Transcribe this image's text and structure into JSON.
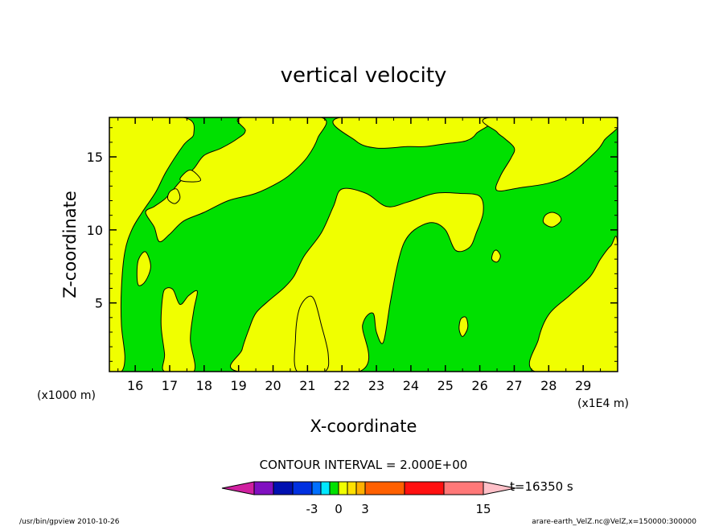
{
  "chart_data": {
    "type": "heatmap",
    "title": "vertical velocity",
    "xlabel": "X-coordinate",
    "ylabel": "Z-coordinate",
    "x_unit_left": "(x1000 m)",
    "x_unit_right": "(x1E4 m)",
    "xlim": [
      15.25,
      30.0
    ],
    "ylim": [
      0.3,
      17.7
    ],
    "x_ticks": [
      16,
      17,
      18,
      19,
      20,
      21,
      22,
      23,
      24,
      25,
      26,
      27,
      28,
      29
    ],
    "y_ticks": [
      5,
      10,
      15
    ],
    "contour_interval_label": "CONTOUR INTERVAL = 2.000E+00",
    "time_label": "t=16350 s",
    "footer_left": "/usr/bin/gpview   2010-10-26",
    "footer_right": "arare-earth_VelZ.nc@VelZ,x=150000:300000",
    "colorbar": {
      "tick_labels": [
        "-3",
        "0",
        "3",
        "15"
      ],
      "colors": [
        "#d020a0",
        "#8010c0",
        "#0010b0",
        "#0030e0",
        "#0070ff",
        "#00e8ff",
        "#00e000",
        "#f0ff00",
        "#ffe000",
        "#ffb000",
        "#ff6000",
        "#ff1010",
        "#ff7878",
        "#ffc0c8"
      ]
    },
    "legend": [
      {
        "range": "-1 to 0",
        "color": "#00e000"
      },
      {
        "range": "0 to 1",
        "color": "#f0ff00"
      }
    ],
    "regions": [
      {
        "value_range": "0 to 1",
        "color": "#f0ff00",
        "points": [
          [
            15.3,
            10.0
          ],
          [
            15.5,
            12.4
          ],
          [
            15.3,
            12.5
          ],
          [
            15.25,
            17.7
          ],
          [
            15.25,
            17.7
          ],
          [
            15.25,
            9.4
          ]
        ]
      },
      {
        "value_range": "0 to 1",
        "color": "#f0ff00",
        "points": [
          [
            15.25,
            17.7
          ],
          [
            17.4,
            17.7
          ],
          [
            17.7,
            16.6
          ],
          [
            17.4,
            15.8
          ],
          [
            16.9,
            14.0
          ],
          [
            16.6,
            12.6
          ],
          [
            16.2,
            11.2
          ],
          [
            15.9,
            10.0
          ],
          [
            15.7,
            8.5
          ],
          [
            15.6,
            6.0
          ],
          [
            15.6,
            3.5
          ],
          [
            15.7,
            1.3
          ],
          [
            15.6,
            0.3
          ],
          [
            15.25,
            0.3
          ]
        ]
      },
      {
        "value_range": "0 to 1",
        "color": "#f0ff00",
        "points": [
          [
            16.3,
            8.5
          ],
          [
            16.45,
            7.5
          ],
          [
            16.3,
            6.5
          ],
          [
            16.1,
            6.2
          ],
          [
            16.05,
            7.0
          ],
          [
            16.1,
            8.0
          ]
        ]
      },
      {
        "value_range": "0 to 1",
        "color": "#f0ff00",
        "points": [
          [
            16.3,
            11.2
          ],
          [
            16.55,
            10.2
          ],
          [
            16.7,
            9.2
          ],
          [
            17.0,
            9.7
          ],
          [
            17.4,
            10.6
          ],
          [
            18.0,
            11.2
          ],
          [
            18.7,
            12.0
          ],
          [
            19.5,
            12.5
          ],
          [
            20.2,
            13.3
          ],
          [
            20.6,
            14.0
          ],
          [
            21.0,
            15.0
          ],
          [
            21.3,
            16.3
          ],
          [
            21.4,
            17.7
          ],
          [
            19.1,
            17.7
          ],
          [
            19.2,
            16.8
          ],
          [
            19.0,
            16.3
          ],
          [
            18.5,
            15.6
          ],
          [
            18.0,
            15.1
          ],
          [
            17.7,
            14.2
          ],
          [
            17.3,
            13.3
          ],
          [
            17.05,
            12.6
          ],
          [
            16.85,
            12.1
          ],
          [
            16.55,
            11.6
          ]
        ]
      },
      {
        "value_range": "0 to 1",
        "color": "#f0ff00",
        "points": [
          [
            17.7,
            0.3
          ],
          [
            17.6,
            2.5
          ],
          [
            17.7,
            4.5
          ],
          [
            17.8,
            5.8
          ],
          [
            17.55,
            5.5
          ],
          [
            17.3,
            4.9
          ],
          [
            17.1,
            5.9
          ],
          [
            16.9,
            6.0
          ],
          [
            16.8,
            5.5
          ],
          [
            16.75,
            3.5
          ],
          [
            16.85,
            1.5
          ],
          [
            16.85,
            0.3
          ]
        ]
      },
      {
        "value_range": "0 to 1",
        "color": "#f0ff00",
        "points": [
          [
            19.0,
            0.3
          ],
          [
            19.1,
            1.8
          ],
          [
            19.3,
            3.2
          ],
          [
            19.5,
            4.3
          ],
          [
            19.9,
            5.2
          ],
          [
            20.3,
            6.0
          ],
          [
            20.6,
            6.8
          ],
          [
            20.9,
            8.2
          ],
          [
            21.4,
            9.8
          ],
          [
            21.75,
            11.6
          ],
          [
            22.0,
            12.8
          ],
          [
            22.7,
            12.5
          ],
          [
            23.3,
            11.6
          ],
          [
            23.9,
            11.9
          ],
          [
            24.7,
            12.5
          ],
          [
            25.4,
            12.5
          ],
          [
            26.0,
            12.3
          ],
          [
            26.1,
            11.2
          ],
          [
            25.9,
            9.8
          ],
          [
            25.7,
            8.8
          ],
          [
            25.3,
            8.6
          ],
          [
            25.0,
            10.0
          ],
          [
            24.6,
            10.5
          ],
          [
            24.1,
            10.0
          ],
          [
            23.8,
            9.1
          ],
          [
            23.6,
            7.5
          ],
          [
            23.4,
            5.0
          ],
          [
            23.2,
            2.3
          ],
          [
            23.0,
            3.0
          ],
          [
            22.9,
            4.3
          ],
          [
            22.6,
            3.5
          ],
          [
            22.5,
            0.3
          ]
        ]
      },
      {
        "value_range": "0 to 1",
        "color": "#f0ff00",
        "points": [
          [
            21.5,
            0.3
          ],
          [
            21.6,
            1.5
          ],
          [
            21.4,
            3.5
          ],
          [
            21.2,
            5.2
          ],
          [
            21.0,
            5.4
          ],
          [
            20.75,
            4.5
          ],
          [
            20.65,
            2.5
          ],
          [
            20.7,
            0.3
          ]
        ]
      },
      {
        "value_range": "0 to 1",
        "color": "#f0ff00",
        "points": [
          [
            21.95,
            17.7
          ],
          [
            22.4,
            16.1
          ],
          [
            23.0,
            15.6
          ],
          [
            23.9,
            15.7
          ],
          [
            24.4,
            15.7
          ],
          [
            25.0,
            15.9
          ],
          [
            25.6,
            16.1
          ],
          [
            25.9,
            16.6
          ],
          [
            26.1,
            17.7
          ]
        ]
      },
      {
        "value_range": "0 to 1",
        "color": "#f0ff00",
        "points": [
          [
            26.3,
            17.7
          ],
          [
            26.5,
            16.7
          ],
          [
            26.7,
            16.3
          ],
          [
            27.0,
            15.6
          ],
          [
            26.9,
            14.9
          ],
          [
            26.6,
            13.7
          ],
          [
            26.5,
            12.7
          ],
          [
            27.2,
            12.9
          ],
          [
            28.0,
            13.2
          ],
          [
            28.6,
            13.8
          ],
          [
            29.3,
            15.2
          ],
          [
            29.6,
            16.1
          ],
          [
            29.9,
            17.7
          ]
        ]
      },
      {
        "value_range": "0 to 1",
        "color": "#f0ff00",
        "points": [
          [
            27.6,
            0.3
          ],
          [
            27.7,
            2.5
          ],
          [
            28.0,
            4.2
          ],
          [
            28.6,
            5.5
          ],
          [
            29.2,
            6.8
          ],
          [
            29.5,
            8.0
          ],
          [
            29.8,
            8.9
          ],
          [
            30.0,
            8.9
          ],
          [
            30.0,
            0.3
          ]
        ]
      },
      {
        "value_range": "0 to 1",
        "color": "#f0ff00",
        "points": [
          [
            28.1,
            11.2
          ],
          [
            28.3,
            11.0
          ],
          [
            28.35,
            10.6
          ],
          [
            28.1,
            10.2
          ],
          [
            27.85,
            10.5
          ],
          [
            27.9,
            11.0
          ]
        ]
      },
      {
        "value_range": "0 to 1",
        "color": "#f0ff00",
        "points": [
          [
            25.6,
            4.0
          ],
          [
            25.65,
            3.3
          ],
          [
            25.5,
            2.7
          ],
          [
            25.4,
            3.2
          ],
          [
            25.45,
            3.9
          ]
        ]
      },
      {
        "value_range": "0 to 1",
        "color": "#f0ff00",
        "points": [
          [
            26.5,
            8.6
          ],
          [
            26.6,
            8.2
          ],
          [
            26.5,
            7.8
          ],
          [
            26.35,
            8.0
          ],
          [
            26.4,
            8.5
          ]
        ]
      },
      {
        "value_range": "0 to 1",
        "color": "#f0ff00",
        "points": [
          [
            17.2,
            12.8
          ],
          [
            17.3,
            12.2
          ],
          [
            17.15,
            11.8
          ],
          [
            16.95,
            12.1
          ],
          [
            17.0,
            12.6
          ]
        ]
      },
      {
        "value_range": "0 to 1",
        "color": "#f0ff00",
        "points": [
          [
            17.6,
            14.1
          ],
          [
            17.9,
            13.4
          ],
          [
            17.5,
            13.3
          ],
          [
            17.3,
            13.5
          ]
        ]
      }
    ]
  }
}
